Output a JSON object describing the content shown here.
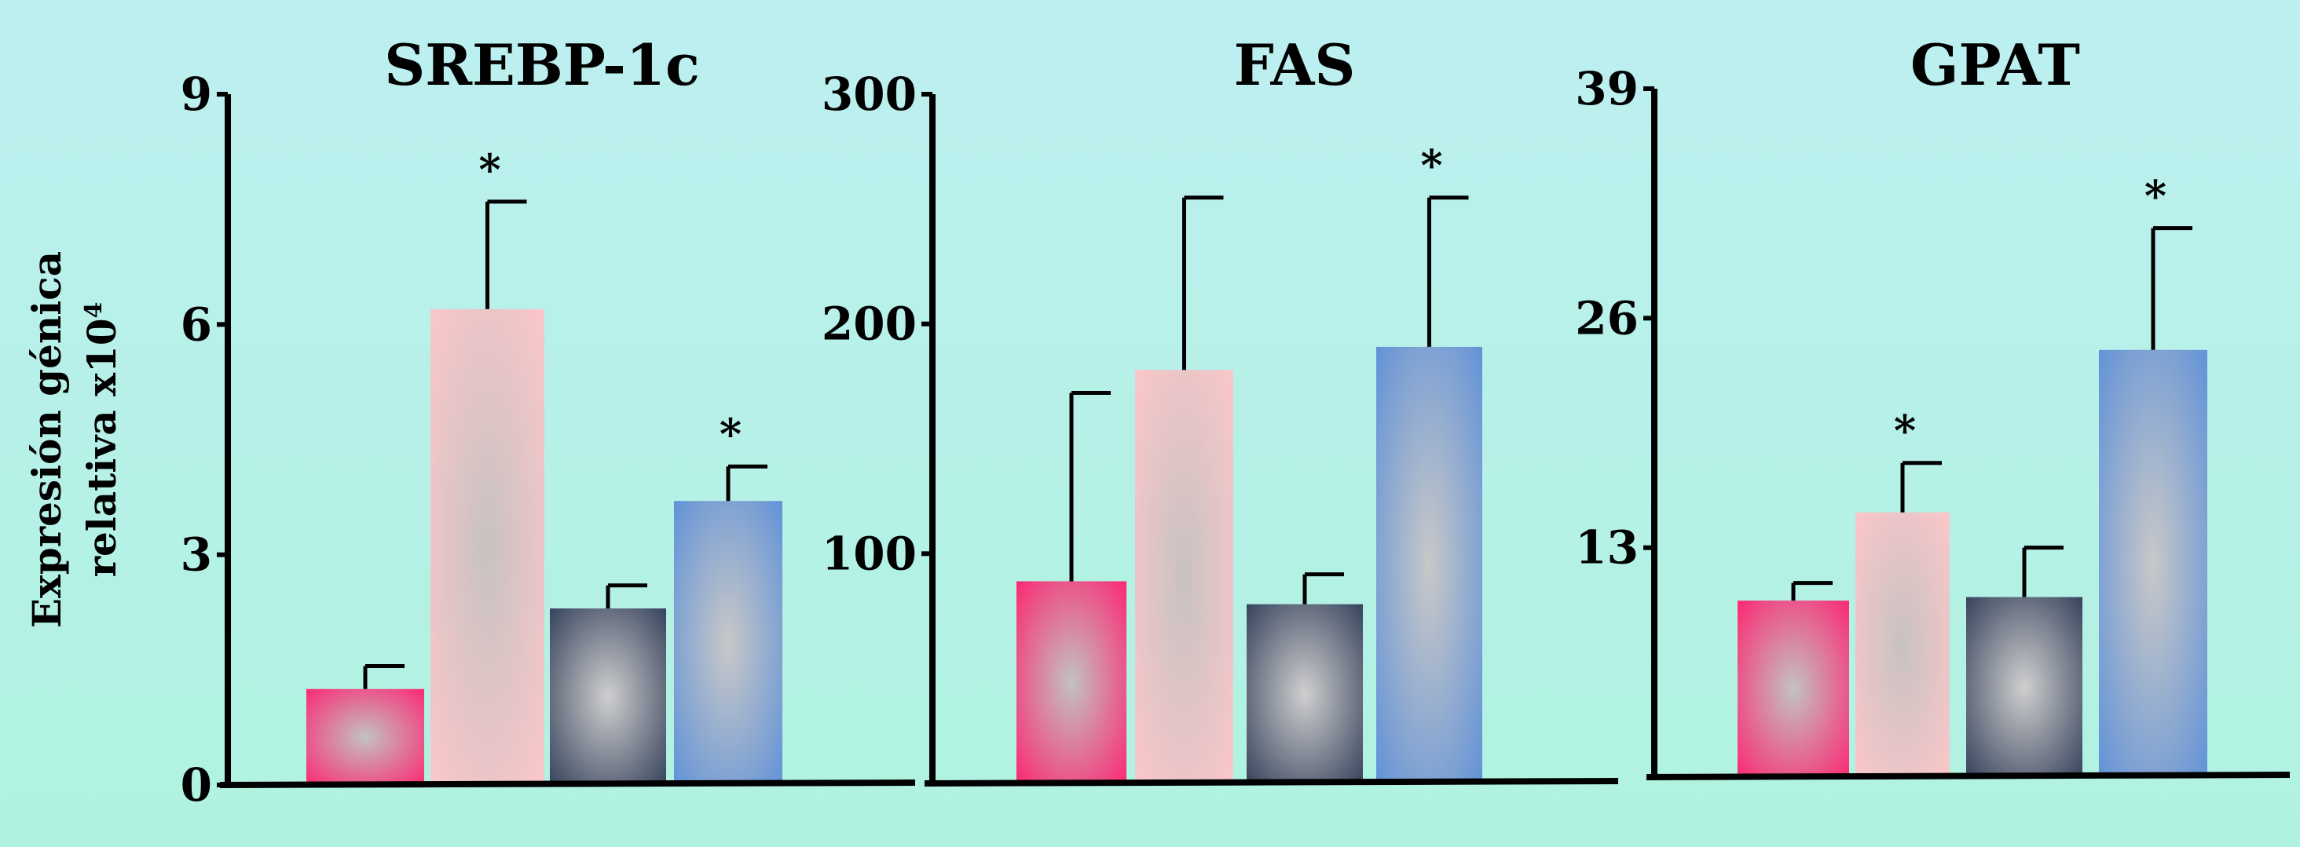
{
  "y_axis_label": {
    "line1": "Expresión génica",
    "line2": "relativa x10",
    "exponent": "4"
  },
  "series_colors": [
    {
      "light": "#c2c2c2",
      "dark": "#ff1f6e"
    },
    {
      "light": "#c8c2c2",
      "dark": "#ffc7ca"
    },
    {
      "light": "#cfcfcf",
      "dark": "#2d3a55"
    },
    {
      "light": "#c8c8c8",
      "dark": "#5b8fd8"
    }
  ],
  "chart_data": [
    {
      "type": "bar",
      "title": "SREBP-1c",
      "ylim": [
        0,
        9
      ],
      "yticks": [
        "0",
        "3",
        "6",
        "9"
      ],
      "values": [
        1.25,
        6.2,
        2.3,
        3.7
      ],
      "errors": [
        0.3,
        1.4,
        0.3,
        0.45
      ],
      "significance": [
        "",
        "*",
        "",
        "*"
      ]
    },
    {
      "type": "bar",
      "title": "FAS",
      "ylim": [
        0,
        300
      ],
      "yticks": [
        "100",
        "200",
        "300"
      ],
      "values": [
        88,
        180,
        78,
        190
      ],
      "errors": [
        82,
        75,
        13,
        65
      ],
      "significance": [
        "",
        "",
        "",
        "*"
      ]
    },
    {
      "type": "bar",
      "title": "GPAT",
      "ylim": [
        0,
        39
      ],
      "yticks": [
        "13",
        "26",
        "39"
      ],
      "values": [
        10,
        15,
        10.2,
        24.2
      ],
      "errors": [
        1,
        2.8,
        2.8,
        6.9
      ],
      "significance": [
        "",
        "*",
        "",
        "*"
      ]
    }
  ]
}
